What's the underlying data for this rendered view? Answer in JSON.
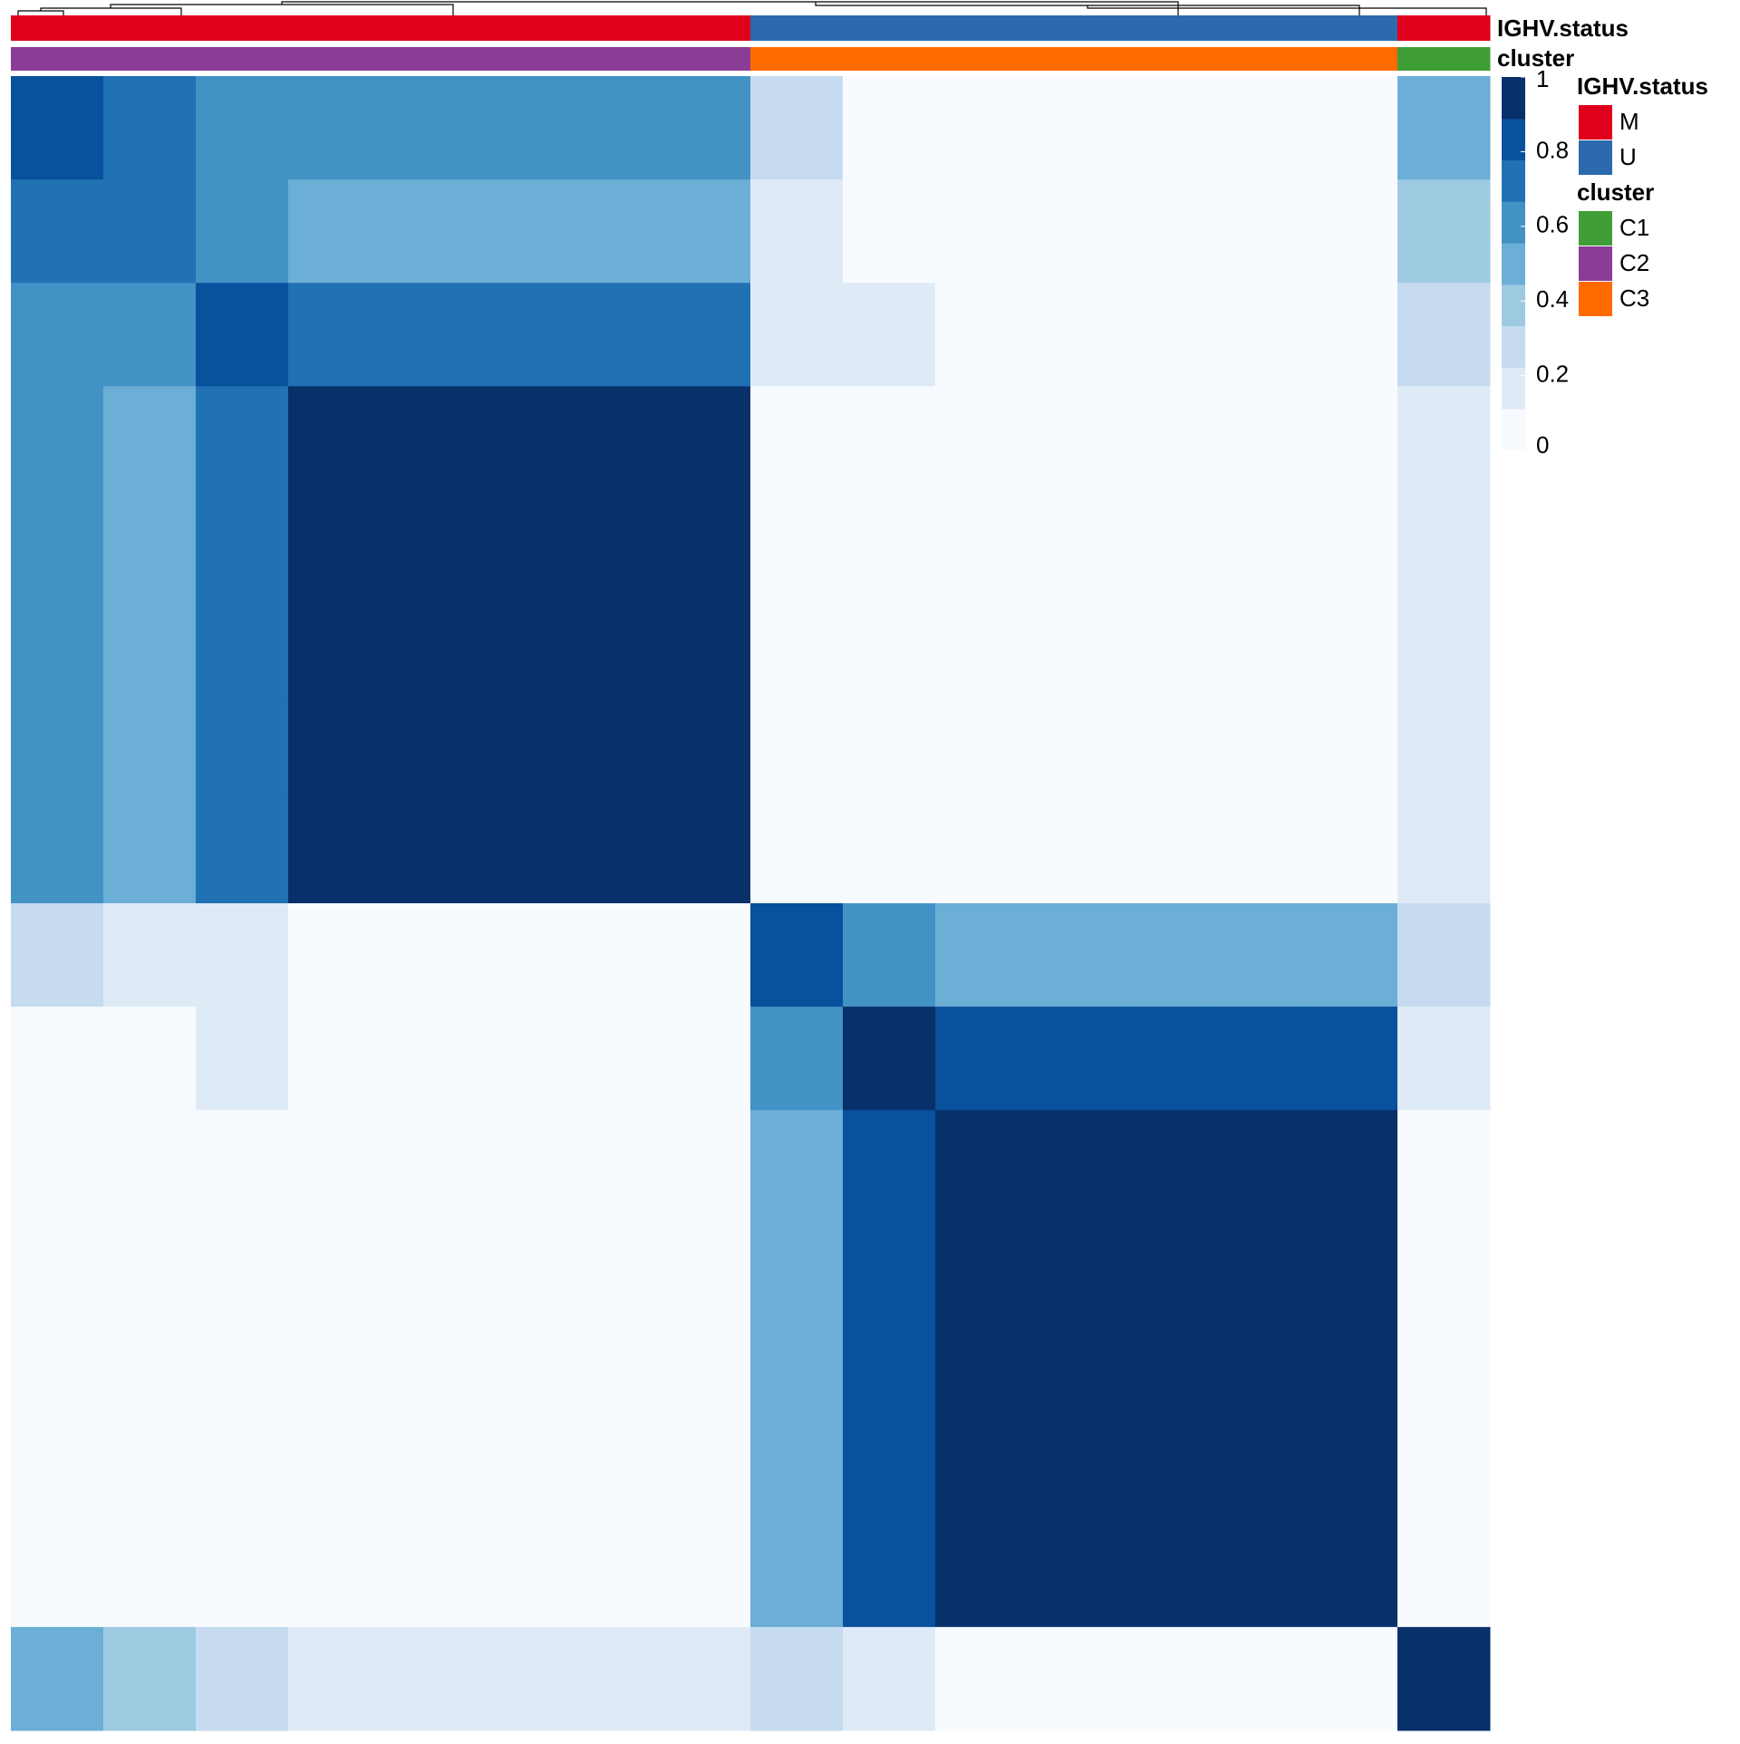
{
  "chart_data": {
    "type": "heatmap",
    "zlim": [
      0,
      1
    ],
    "zticks": [
      0,
      0.2,
      0.4,
      0.6,
      0.8,
      1
    ],
    "colors": [
      "#f7fbff",
      "#deebf7",
      "#c6dbef",
      "#9ecae1",
      "#6baed6",
      "#4292c6",
      "#2171b5",
      "#08519c",
      "#08306b"
    ],
    "annotations": [
      {
        "name": "IGHV.status",
        "levels": [
          {
            "label": "M",
            "color": "#e0001b"
          },
          {
            "label": "U",
            "color": "#2c6aad"
          }
        ],
        "values": [
          "M",
          "M",
          "M",
          "M",
          "M",
          "M",
          "M",
          "M",
          "U",
          "U",
          "U",
          "U",
          "U",
          "U",
          "U",
          "M"
        ]
      },
      {
        "name": "cluster",
        "levels": [
          {
            "label": "C1",
            "color": "#3f9e35"
          },
          {
            "label": "C2",
            "color": "#893d96"
          },
          {
            "label": "C3",
            "color": "#ff6a00"
          }
        ],
        "values": [
          "C2",
          "C2",
          "C2",
          "C2",
          "C2",
          "C2",
          "C2",
          "C2",
          "C3",
          "C3",
          "C3",
          "C3",
          "C3",
          "C3",
          "C3",
          "C1"
        ]
      }
    ],
    "matrix": [
      [
        0.8,
        0.7,
        0.6,
        0.6,
        0.6,
        0.6,
        0.6,
        0.6,
        0.25,
        0.1,
        0.1,
        0.1,
        0.1,
        0.1,
        0.1,
        0.5
      ],
      [
        0.7,
        0.75,
        0.6,
        0.55,
        0.55,
        0.55,
        0.55,
        0.55,
        0.2,
        0.1,
        0.1,
        0.1,
        0.1,
        0.1,
        0.1,
        0.4
      ],
      [
        0.6,
        0.6,
        0.85,
        0.75,
        0.75,
        0.75,
        0.75,
        0.75,
        0.2,
        0.2,
        0.1,
        0.1,
        0.1,
        0.1,
        0.1,
        0.3
      ],
      [
        0.6,
        0.55,
        0.75,
        0.9,
        0.9,
        0.9,
        0.9,
        0.9,
        0.1,
        0.1,
        0.05,
        0.05,
        0.05,
        0.05,
        0.05,
        0.2
      ],
      [
        0.6,
        0.55,
        0.75,
        0.9,
        1,
        1,
        1,
        0.95,
        0.1,
        0.1,
        0.05,
        0.05,
        0.05,
        0.05,
        0.05,
        0.2
      ],
      [
        0.6,
        0.55,
        0.75,
        0.9,
        1,
        1,
        1,
        0.95,
        0.1,
        0.1,
        0.05,
        0.05,
        0.05,
        0.05,
        0.05,
        0.2
      ],
      [
        0.6,
        0.55,
        0.75,
        0.9,
        1,
        1,
        1,
        0.95,
        0.1,
        0.1,
        0.05,
        0.05,
        0.05,
        0.05,
        0.05,
        0.2
      ],
      [
        0.6,
        0.55,
        0.75,
        0.9,
        0.95,
        0.95,
        0.95,
        1,
        0.1,
        0.1,
        0.05,
        0.05,
        0.05,
        0.05,
        0.05,
        0.2
      ],
      [
        0.25,
        0.2,
        0.2,
        0.1,
        0.1,
        0.1,
        0.1,
        0.1,
        0.8,
        0.6,
        0.55,
        0.55,
        0.55,
        0.55,
        0.55,
        0.3
      ],
      [
        0.1,
        0.1,
        0.2,
        0.1,
        0.1,
        0.1,
        0.1,
        0.1,
        0.6,
        0.9,
        0.85,
        0.85,
        0.85,
        0.85,
        0.85,
        0.15
      ],
      [
        0.1,
        0.1,
        0.1,
        0.05,
        0.05,
        0.05,
        0.05,
        0.05,
        0.55,
        0.85,
        0.95,
        0.9,
        0.9,
        0.9,
        0.9,
        0.1
      ],
      [
        0.1,
        0.1,
        0.1,
        0.05,
        0.05,
        0.05,
        0.05,
        0.05,
        0.55,
        0.85,
        0.9,
        1,
        1,
        1,
        1,
        0.1
      ],
      [
        0.1,
        0.1,
        0.1,
        0.05,
        0.05,
        0.05,
        0.05,
        0.05,
        0.55,
        0.85,
        0.9,
        1,
        1,
        1,
        1,
        0.1
      ],
      [
        0.1,
        0.1,
        0.1,
        0.05,
        0.05,
        0.05,
        0.05,
        0.05,
        0.55,
        0.85,
        0.9,
        1,
        1,
        1,
        1,
        0.1
      ],
      [
        0.1,
        0.1,
        0.1,
        0.05,
        0.05,
        0.05,
        0.05,
        0.05,
        0.55,
        0.85,
        0.9,
        1,
        1,
        1,
        1,
        0.1
      ],
      [
        0.5,
        0.4,
        0.3,
        0.2,
        0.2,
        0.2,
        0.2,
        0.2,
        0.3,
        0.15,
        0.1,
        0.1,
        0.1,
        0.1,
        0.1,
        0.95
      ]
    ]
  }
}
